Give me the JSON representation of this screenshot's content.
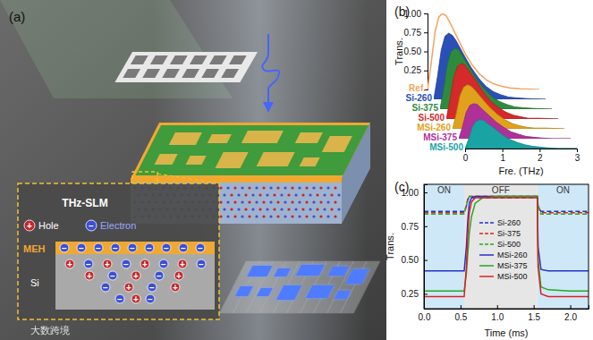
{
  "diagram": {
    "title": "(a)",
    "inset_title": "THz-SLM",
    "carriers": [
      {
        "label": "Hole",
        "symbol": "+"
      },
      {
        "label": "Electron",
        "symbol": "−"
      }
    ],
    "layers": [
      "MEH",
      "Si"
    ],
    "watermark": "大数跨境"
  },
  "chart_data": [
    {
      "type": "area",
      "title": "(b)",
      "x_label": "Fre. (THz)",
      "y_label": "Trans.",
      "xlim": [
        0,
        3
      ],
      "xticks": [
        0,
        1,
        2,
        3
      ],
      "ylim": [
        0,
        1
      ],
      "yticks": [
        0.25,
        {
          "value": 0.5,
          "label": "0.50"
        },
        0.75,
        {
          "value": 1,
          "label": "1.00"
        }
      ],
      "x": [
        0,
        0.1,
        0.2,
        0.3,
        0.4,
        0.5,
        0.6,
        0.8,
        1.0,
        1.2,
        1.4,
        1.6,
        1.8,
        2.0,
        2.2,
        2.5,
        3.0
      ],
      "series": [
        {
          "name": "Ref.",
          "color": "#f5a35c",
          "type": "line",
          "values": [
            0,
            0.35,
            0.75,
            0.95,
            1.0,
            0.97,
            0.88,
            0.68,
            0.48,
            0.32,
            0.2,
            0.12,
            0.07,
            0.04,
            0.02,
            0.01,
            0
          ]
        },
        {
          "name": "Si-260",
          "color": "#2b4fb8",
          "values": [
            0,
            0.3,
            0.65,
            0.83,
            0.87,
            0.84,
            0.77,
            0.59,
            0.42,
            0.28,
            0.17,
            0.1,
            0.06,
            0.03,
            0.02,
            0.01,
            0
          ]
        },
        {
          "name": "Si-375",
          "color": "#2e8b3e",
          "values": [
            0,
            0.28,
            0.6,
            0.76,
            0.8,
            0.78,
            0.7,
            0.54,
            0.38,
            0.26,
            0.16,
            0.1,
            0.06,
            0.03,
            0.02,
            0.01,
            0
          ]
        },
        {
          "name": "Si-500",
          "color": "#d42a2a",
          "values": [
            0,
            0.26,
            0.55,
            0.69,
            0.73,
            0.71,
            0.64,
            0.5,
            0.35,
            0.23,
            0.15,
            0.09,
            0.05,
            0.03,
            0.01,
            0.01,
            0
          ]
        },
        {
          "name": "MSi-260",
          "color": "#e0a21c",
          "values": [
            0,
            0.2,
            0.44,
            0.55,
            0.58,
            0.56,
            0.51,
            0.39,
            0.28,
            0.19,
            0.12,
            0.07,
            0.04,
            0.02,
            0.01,
            0.01,
            0
          ]
        },
        {
          "name": "MSi-375",
          "color": "#b0309a",
          "values": [
            0,
            0.16,
            0.35,
            0.44,
            0.46,
            0.45,
            0.4,
            0.31,
            0.22,
            0.15,
            0.09,
            0.06,
            0.03,
            0.02,
            0.01,
            0,
            0
          ]
        },
        {
          "name": "MSi-500",
          "color": "#1aa3a3",
          "values": [
            0,
            0.13,
            0.29,
            0.36,
            0.38,
            0.37,
            0.33,
            0.26,
            0.18,
            0.12,
            0.08,
            0.05,
            0.03,
            0.02,
            0.01,
            0,
            0
          ]
        }
      ]
    },
    {
      "type": "line",
      "title": "(c)",
      "x_label": "Time (ms)",
      "y_label": "Trans.",
      "xlim": [
        0,
        2.25
      ],
      "xticks": [
        {
          "value": 0,
          "label": "0.0"
        },
        0.5,
        {
          "value": 1,
          "label": "1.0"
        },
        1.5,
        {
          "value": 2,
          "label": "2.0"
        }
      ],
      "ylim": [
        0.14,
        1.06
      ],
      "yticks": [
        0.25,
        {
          "value": 0.5,
          "label": "0.50"
        },
        0.75,
        {
          "value": 1,
          "label": "1.00"
        }
      ],
      "regions": [
        {
          "label": "ON",
          "start": 0,
          "end": 0.55
        },
        {
          "label": "OFF",
          "start": 0.55,
          "end": 1.55
        },
        {
          "label": "ON",
          "start": 1.55,
          "end": 2.25
        }
      ],
      "legend": "lower center",
      "x": [
        0,
        0.5,
        0.55,
        0.58,
        0.6,
        0.62,
        0.65,
        0.7,
        0.8,
        1.0,
        1.5,
        1.55,
        1.56,
        1.6,
        1.7,
        2.0,
        2.25
      ],
      "series": [
        {
          "name": "Si-260",
          "color": "#2233cc",
          "line_style": "dashed",
          "values": [
            0.86,
            0.86,
            0.86,
            0.9,
            0.95,
            0.96,
            0.96,
            0.96,
            0.96,
            0.96,
            0.96,
            0.96,
            0.9,
            0.86,
            0.86,
            0.86,
            0.86
          ]
        },
        {
          "name": "Si-375",
          "color": "#e02020",
          "line_style": "dashed",
          "values": [
            0.85,
            0.85,
            0.85,
            0.9,
            0.95,
            0.97,
            0.97,
            0.97,
            0.97,
            0.97,
            0.97,
            0.97,
            0.9,
            0.85,
            0.85,
            0.85,
            0.85
          ]
        },
        {
          "name": "Si-500",
          "color": "#22aa22",
          "line_style": "dashed",
          "values": [
            0.84,
            0.84,
            0.84,
            0.9,
            0.95,
            0.97,
            0.97,
            0.97,
            0.97,
            0.97,
            0.97,
            0.97,
            0.9,
            0.84,
            0.84,
            0.84,
            0.84
          ]
        },
        {
          "name": "MSi-260",
          "color": "#2233cc",
          "line_style": "solid",
          "values": [
            0.42,
            0.42,
            0.42,
            0.6,
            0.8,
            0.92,
            0.96,
            0.97,
            0.97,
            0.97,
            0.97,
            0.97,
            0.6,
            0.43,
            0.42,
            0.42,
            0.42
          ]
        },
        {
          "name": "MSi-375",
          "color": "#22aa22",
          "line_style": "solid",
          "values": [
            0.27,
            0.27,
            0.27,
            0.4,
            0.55,
            0.7,
            0.82,
            0.92,
            0.96,
            0.97,
            0.97,
            0.97,
            0.5,
            0.3,
            0.28,
            0.27,
            0.27
          ]
        },
        {
          "name": "MSi-500",
          "color": "#e02020",
          "line_style": "solid",
          "values": [
            0.23,
            0.23,
            0.23,
            0.45,
            0.7,
            0.85,
            0.93,
            0.96,
            0.96,
            0.96,
            0.96,
            0.96,
            0.45,
            0.25,
            0.23,
            0.23,
            0.23
          ]
        }
      ]
    }
  ]
}
